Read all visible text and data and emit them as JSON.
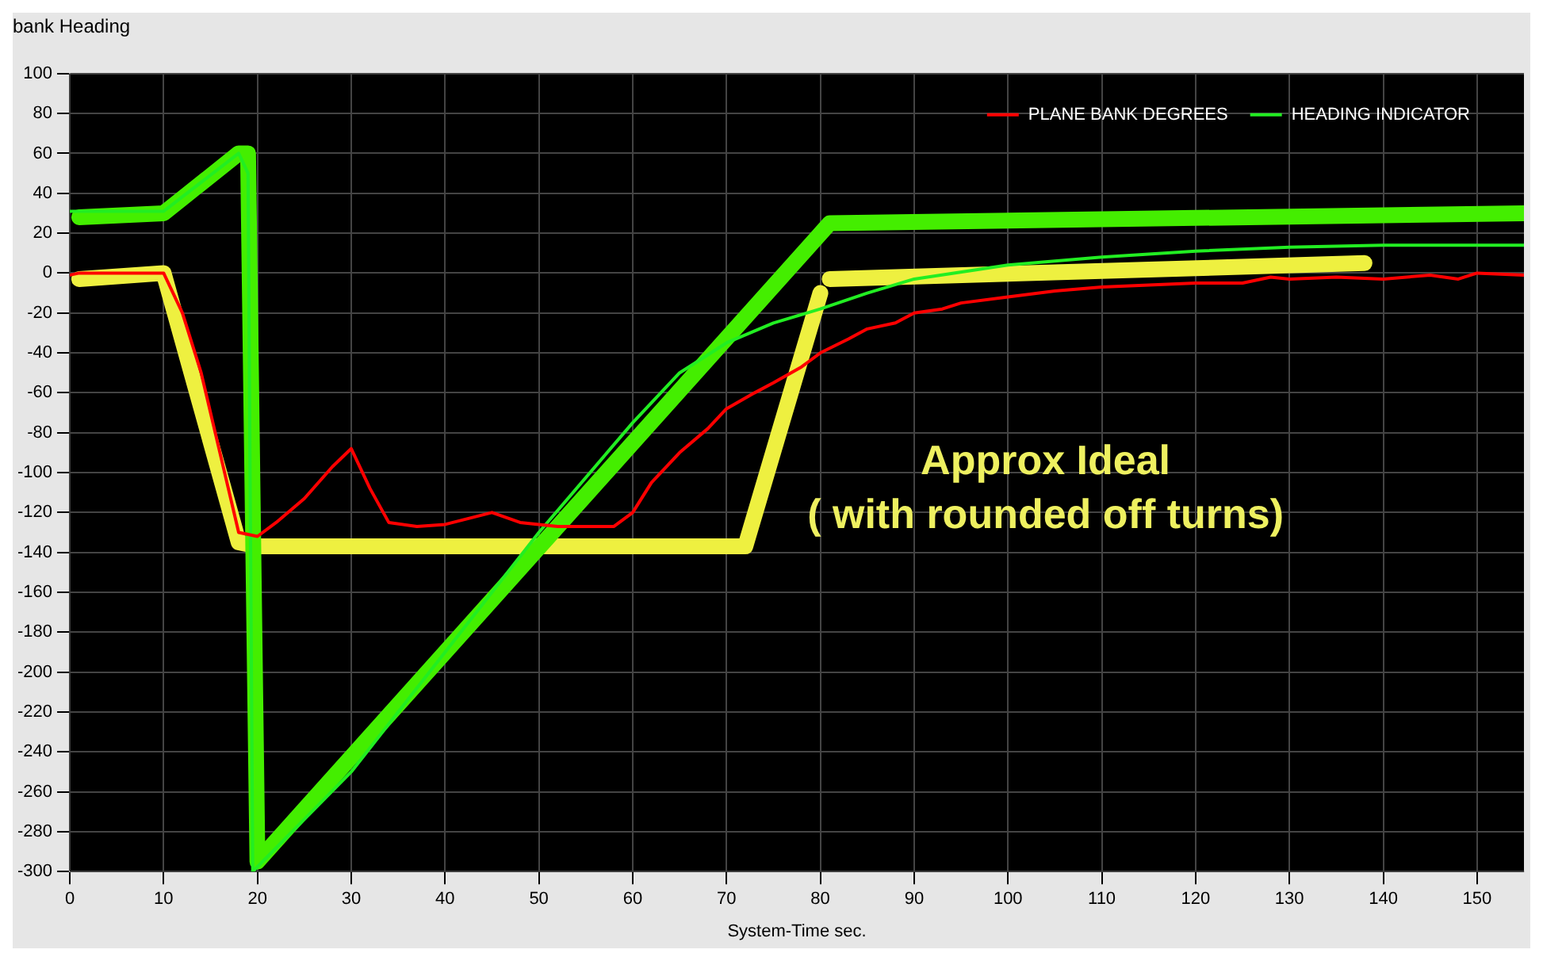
{
  "chart_data": {
    "type": "line",
    "title": "bank Heading",
    "xlabel": "System-Time sec.",
    "xlim": [
      0,
      155
    ],
    "xticks": [
      0,
      10,
      20,
      30,
      40,
      50,
      60,
      70,
      80,
      90,
      100,
      110,
      120,
      130,
      140,
      150
    ],
    "ylim": [
      -300,
      100
    ],
    "yticks": [
      -300,
      -280,
      -260,
      -240,
      -220,
      -200,
      -180,
      -160,
      -140,
      -120,
      -100,
      -80,
      -60,
      -40,
      -20,
      0,
      20,
      40,
      60,
      80,
      100
    ],
    "grid": true,
    "legend": "top right",
    "marker": "none",
    "line_style": "solid",
    "annotations": [
      "Approx Ideal",
      "( with rounded off turns)"
    ],
    "series": [
      {
        "color": "#44ee00",
        "x": [
          1,
          10,
          18,
          19,
          20,
          81,
          155
        ],
        "values": [
          28,
          30,
          60,
          60,
          -295,
          25,
          30
        ]
      },
      {
        "color": "#eef040",
        "x": [
          1,
          10,
          18,
          20,
          72,
          80,
          80.5,
          81,
          138
        ],
        "values": [
          -3,
          0,
          -135,
          -137,
          -137,
          -10,
          null,
          -3,
          5
        ]
      },
      {
        "name": "PLANE BANK DEGREES",
        "color": "#ff0000",
        "x": [
          0,
          1,
          10,
          12,
          14,
          16,
          18,
          20,
          22,
          25,
          28,
          30,
          32,
          34,
          37,
          40,
          45,
          48,
          52,
          55,
          58,
          60,
          62,
          65,
          68,
          70,
          73,
          75,
          78,
          80,
          83,
          85,
          88,
          90,
          93,
          95,
          100,
          105,
          110,
          115,
          120,
          125,
          128,
          130,
          135,
          140,
          145,
          148,
          150,
          155
        ],
        "values": [
          -1,
          0,
          0,
          -20,
          -50,
          -90,
          -130,
          -132,
          -125,
          -113,
          -97,
          -88,
          -108,
          -125,
          -127,
          -126,
          -120,
          -125,
          -127,
          -127,
          -127,
          -120,
          -105,
          -90,
          -78,
          -68,
          -60,
          -55,
          -47,
          -40,
          -33,
          -28,
          -25,
          -20,
          -18,
          -15,
          -12,
          -9,
          -7,
          -6,
          -5,
          -5,
          -2,
          -3,
          -2,
          -3,
          -1,
          -3,
          0,
          -1
        ]
      },
      {
        "name": "HEADING INDICATOR",
        "color": "#22ee22",
        "x": [
          0,
          10,
          18,
          19,
          19.5,
          30,
          40,
          50,
          60,
          65,
          70,
          75,
          80,
          85,
          90,
          100,
          110,
          120,
          130,
          140,
          155
        ],
        "values": [
          31,
          31,
          60,
          50,
          -300,
          -250,
          -190,
          -130,
          -75,
          -50,
          -35,
          -25,
          -18,
          -10,
          -3,
          4,
          8,
          11,
          13,
          14,
          14
        ]
      }
    ]
  }
}
